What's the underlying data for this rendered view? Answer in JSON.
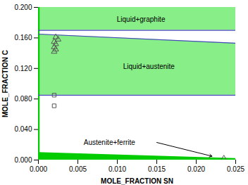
{
  "chart_data": {
    "type": "phase_diagram",
    "xlabel": "MOLE_FRACTION SN",
    "ylabel": "MOLE_FRACTION C",
    "xlim": [
      0.0,
      0.025
    ],
    "ylim": [
      0.0,
      0.2
    ],
    "xticks": [
      {
        "value": 0.0,
        "label": "0.000"
      },
      {
        "value": 0.005,
        "label": "0.005"
      },
      {
        "value": 0.01,
        "label": "0.010"
      },
      {
        "value": 0.015,
        "label": "0.015"
      },
      {
        "value": 0.02,
        "label": "0.020"
      },
      {
        "value": 0.025,
        "label": "0.025"
      }
    ],
    "yticks": [
      {
        "value": 0.0,
        "label": "0.000"
      },
      {
        "value": 0.04,
        "label": "0.040"
      },
      {
        "value": 0.08,
        "label": "0.080"
      },
      {
        "value": 0.12,
        "label": "0.120"
      },
      {
        "value": 0.16,
        "label": "0.160"
      },
      {
        "value": 0.2,
        "label": "0.200"
      }
    ],
    "regions": [
      {
        "x": [
          0.0,
          0.025
        ],
        "y_bottom": [
          0.17,
          0.17
        ],
        "y_top": [
          0.2,
          0.2
        ],
        "color": "#88ee88"
      },
      {
        "x": [
          0.0,
          0.025
        ],
        "y_bottom": [
          0.085,
          0.085
        ],
        "y_top": [
          0.165,
          0.153
        ],
        "color": "#88ee88"
      },
      {
        "x": [
          0.0,
          0.025
        ],
        "y_bottom": [
          0.0,
          0.0
        ],
        "y_top": [
          0.01,
          0.002
        ],
        "color": "#00cc00"
      }
    ],
    "vlines": [
      {
        "x": 0.0,
        "color": "#00cc00"
      }
    ],
    "lines": [
      {
        "x": [
          0.0,
          0.025
        ],
        "y": [
          0.17,
          0.17
        ],
        "color": "#4444bb"
      },
      {
        "x": [
          0.0,
          0.025
        ],
        "y": [
          0.165,
          0.153
        ],
        "color": "#4444bb"
      },
      {
        "x": [
          0.0,
          0.025
        ],
        "y": [
          0.085,
          0.085
        ],
        "color": "#4444bb"
      }
    ],
    "annotations": [
      {
        "text": "Liquid+graphite",
        "x": 0.013,
        "y": 0.184
      },
      {
        "text": "Liquid+austenite",
        "x": 0.014,
        "y": 0.122
      },
      {
        "text": "Austenite+ferrite",
        "x": 0.009,
        "y": 0.023
      }
    ],
    "points": [
      {
        "marker": "triangle",
        "color": "#555555",
        "x": [
          0.0022,
          0.0025,
          0.002,
          0.0022,
          0.002,
          0.0022,
          0.002
        ],
        "y": [
          0.161,
          0.158,
          0.155,
          0.152,
          0.148,
          0.145,
          0.142
        ]
      },
      {
        "marker": "square",
        "color": "#555555",
        "x": [
          0.002,
          0.002
        ],
        "y": [
          0.085,
          0.071
        ]
      },
      {
        "marker": "triangle",
        "color": "#555555",
        "x": [
          0.0235
        ],
        "y": [
          0.002
        ]
      }
    ],
    "arrows": [
      {
        "x_start": 0.015,
        "y_start": 0.023,
        "x_end": 0.022,
        "y_end": 0.005
      }
    ]
  }
}
